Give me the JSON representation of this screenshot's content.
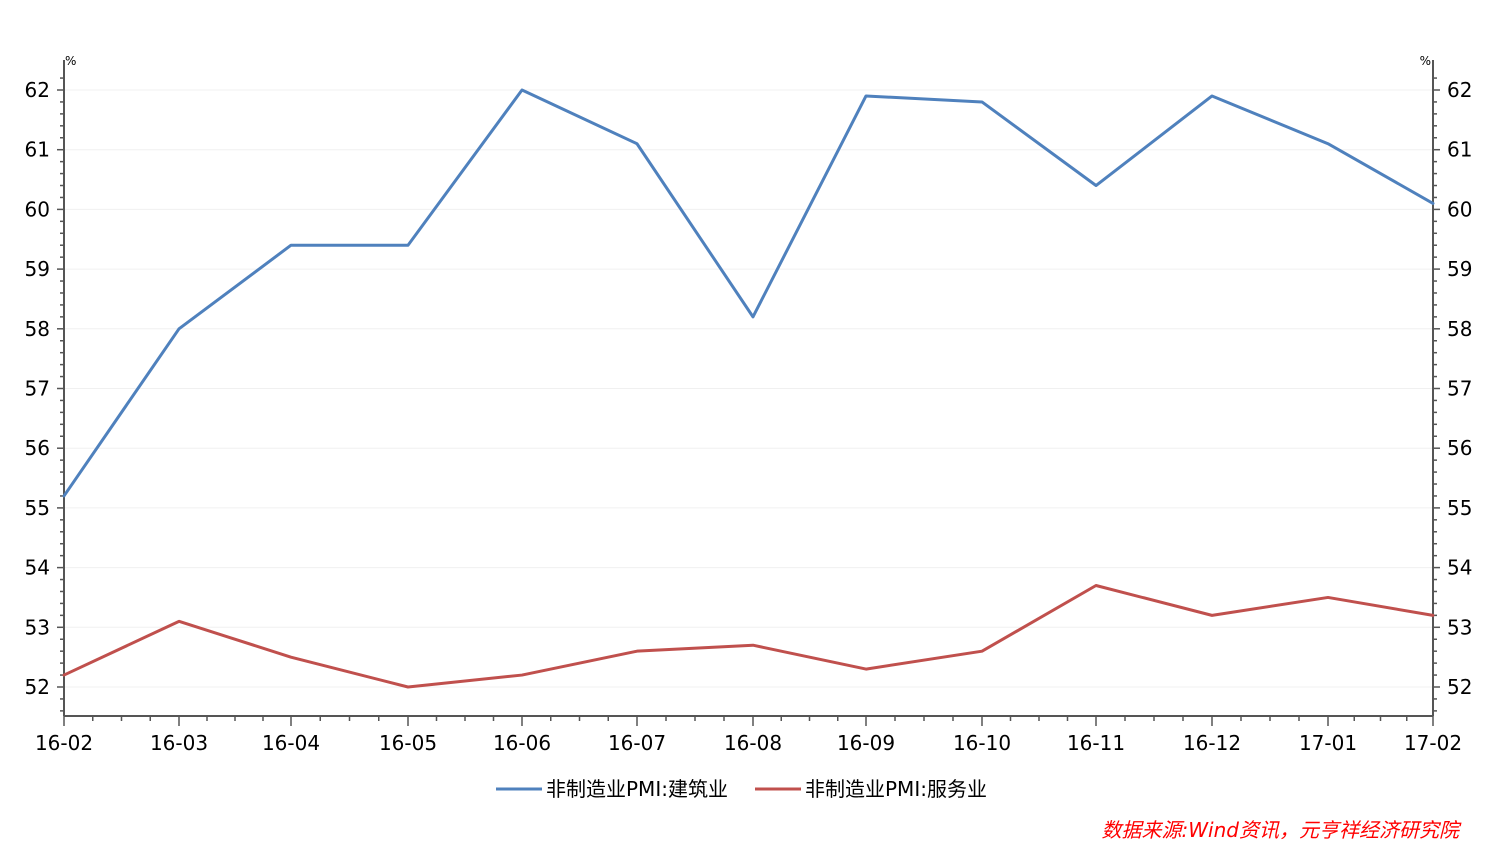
{
  "chart_data": {
    "type": "line",
    "categories": [
      "16-02",
      "16-03",
      "16-04",
      "16-05",
      "16-06",
      "16-07",
      "16-08",
      "16-09",
      "16-10",
      "16-11",
      "16-12",
      "17-01",
      "17-02"
    ],
    "series": [
      {
        "name": "非制造业PMI:建筑业",
        "color": "#4f81bd",
        "values": [
          55.2,
          58.0,
          59.4,
          59.4,
          62.0,
          61.1,
          58.2,
          61.9,
          61.8,
          60.4,
          61.9,
          61.1,
          60.1
        ]
      },
      {
        "name": "非制造业PMI:服务业",
        "color": "#c0504d",
        "values": [
          52.2,
          53.1,
          52.5,
          52.0,
          52.2,
          52.6,
          52.7,
          52.3,
          52.6,
          53.7,
          53.2,
          53.5,
          53.2
        ]
      }
    ],
    "left_unit": "%",
    "right_unit": "%",
    "y_ticks": [
      52,
      53,
      54,
      55,
      56,
      57,
      58,
      59,
      60,
      61,
      62
    ],
    "ylim": [
      51.5,
      62.5
    ],
    "grid": true,
    "legend_position": "bottom-center"
  },
  "source_note": "数据来源:Wind资讯，元亨祥经济研究院"
}
